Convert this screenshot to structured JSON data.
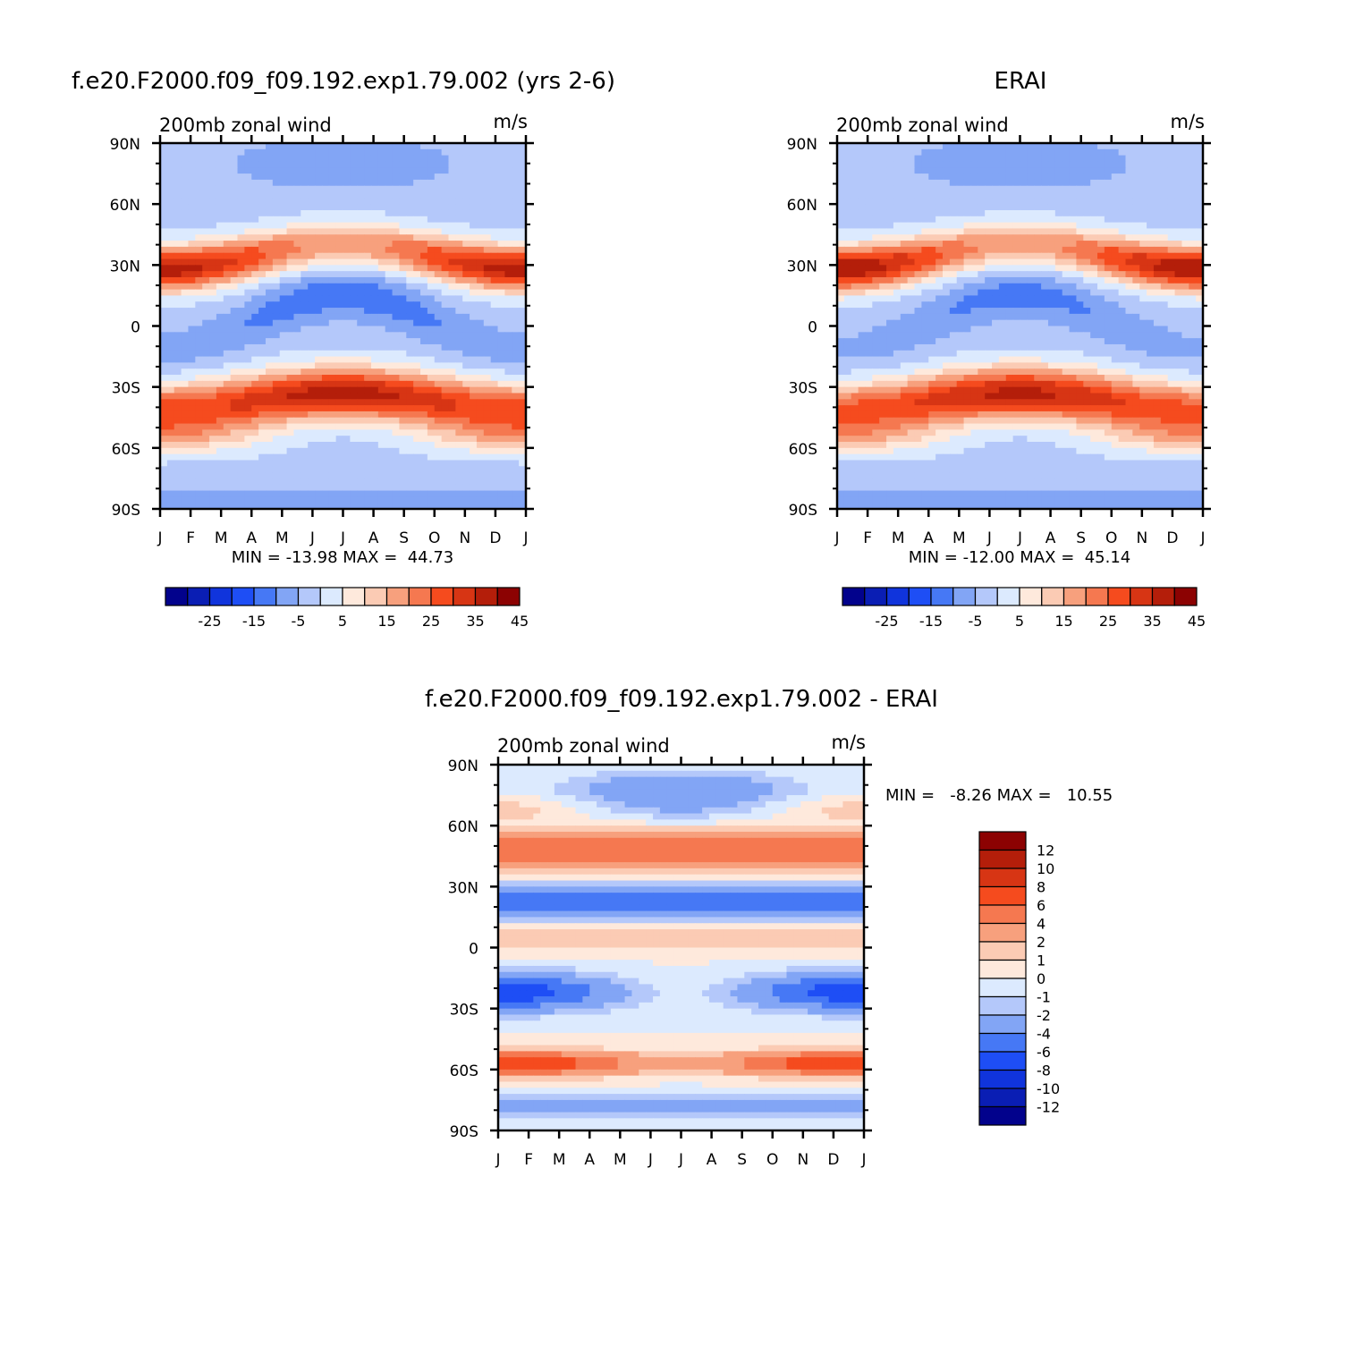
{
  "chart_data": [
    {
      "type": "heatmap",
      "id": "model",
      "title": "f.e20.F2000.f09_f09.192.exp1.79.002 (yrs 2-6)",
      "left_label": "200mb zonal wind",
      "right_label": "m/s",
      "x_ticks": [
        "J",
        "F",
        "M",
        "A",
        "M",
        "J",
        "J",
        "A",
        "S",
        "O",
        "N",
        "D",
        "J"
      ],
      "y_ticks": [
        "90N",
        "60N",
        "30N",
        "0",
        "30S",
        "60S",
        "90S"
      ],
      "y_values": [
        90,
        60,
        30,
        0,
        -30,
        -60,
        -90
      ],
      "stats": "MIN = -13.98 MAX =  44.73",
      "levels": [
        -30,
        -25,
        -20,
        -15,
        -10,
        -5,
        0,
        5,
        10,
        15,
        20,
        25,
        30,
        35,
        40,
        45,
        50
      ],
      "colorbar_labels": [
        "-25",
        "-15",
        "-5",
        "5",
        "15",
        "25",
        "35",
        "45"
      ],
      "stj_nh_amp": 10,
      "stj_nh_mean": 30,
      "stj_sh_amp": 5,
      "stj_sh_mean": 34,
      "east_amp": 7,
      "east_mean": -5
    },
    {
      "type": "heatmap",
      "id": "obs",
      "title": "ERAI",
      "left_label": "200mb zonal wind",
      "right_label": "m/s",
      "x_ticks": [
        "J",
        "F",
        "M",
        "A",
        "M",
        "J",
        "J",
        "A",
        "S",
        "O",
        "N",
        "D",
        "J"
      ],
      "y_ticks": [
        "90N",
        "60N",
        "30N",
        "0",
        "30S",
        "60S",
        "90S"
      ],
      "y_values": [
        90,
        60,
        30,
        0,
        -30,
        -60,
        -90
      ],
      "stats": "MIN = -12.00 MAX =  45.14",
      "levels": [
        -30,
        -25,
        -20,
        -15,
        -10,
        -5,
        0,
        5,
        10,
        15,
        20,
        25,
        30,
        35,
        40,
        45,
        50
      ],
      "colorbar_labels": [
        "-25",
        "-15",
        "-5",
        "5",
        "15",
        "25",
        "35",
        "45"
      ],
      "stj_nh_amp": 11,
      "stj_nh_mean": 30,
      "stj_sh_amp": 5,
      "stj_sh_mean": 33,
      "east_amp": 6,
      "east_mean": -4
    },
    {
      "type": "heatmap",
      "id": "diff",
      "title": "f.e20.F2000.f09_f09.192.exp1.79.002 - ERAI",
      "left_label": "200mb zonal wind",
      "right_label": "m/s",
      "x_ticks": [
        "J",
        "F",
        "M",
        "A",
        "M",
        "J",
        "J",
        "A",
        "S",
        "O",
        "N",
        "D",
        "J"
      ],
      "y_ticks": [
        "90N",
        "60N",
        "30N",
        "0",
        "30S",
        "60S",
        "90S"
      ],
      "y_values": [
        90,
        60,
        30,
        0,
        -30,
        -60,
        -90
      ],
      "stats": "MIN =   -8.26 MAX =   10.55",
      "levels": [
        -14,
        -12,
        -10,
        -8,
        -6,
        -4,
        -2,
        -1,
        0,
        1,
        2,
        4,
        6,
        8,
        10,
        12,
        14
      ],
      "colorbar_labels": [
        "12",
        "10",
        "8",
        "6",
        "4",
        "2",
        "1",
        "0",
        "-1",
        "-2",
        "-4",
        "-6",
        "-8",
        "-10",
        "-12"
      ]
    }
  ],
  "palette": [
    "#02028c",
    "#0a1eb4",
    "#1034dc",
    "#1e4ef5",
    "#4678f5",
    "#82a5f5",
    "#b4c8fa",
    "#dceafe",
    "#fee9dc",
    "#fbcbb4",
    "#f7a07d",
    "#f57850",
    "#f54b1e",
    "#d73514",
    "#b41e0a",
    "#8c0202"
  ]
}
